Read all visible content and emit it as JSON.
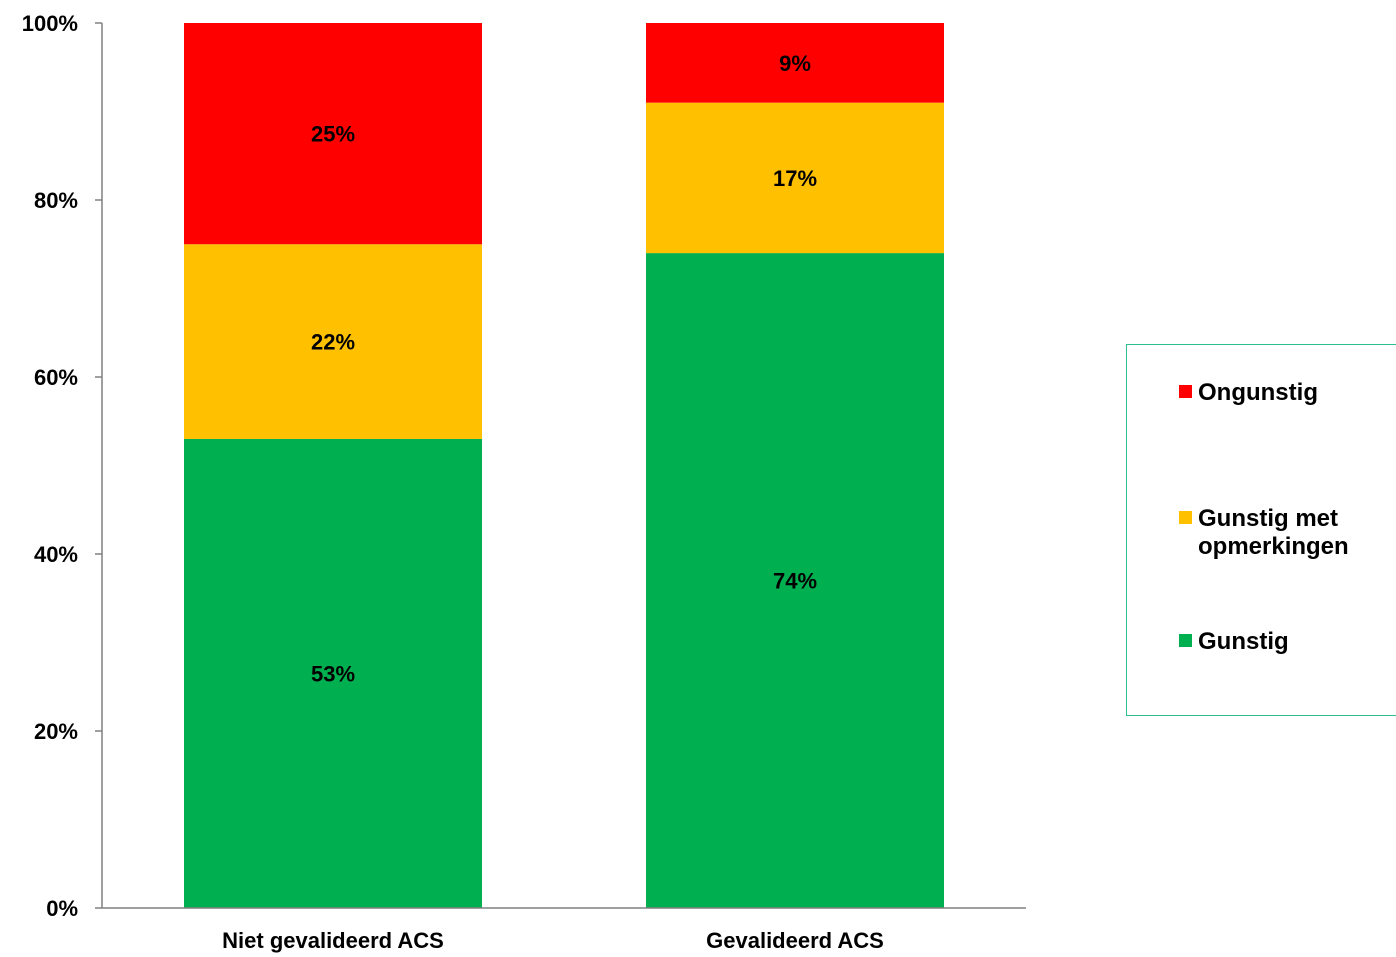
{
  "chart_data": {
    "type": "bar",
    "stacked": true,
    "categories": [
      "Niet gevalideerd ACS",
      "Gevalideerd ACS"
    ],
    "series": [
      {
        "name": "Gunstig",
        "values": [
          53,
          74
        ],
        "color": "#00b050"
      },
      {
        "name": "Gunstig met opmerkingen",
        "values": [
          22,
          17
        ],
        "color": "#ffc000"
      },
      {
        "name": "Ongunstig",
        "values": [
          25,
          9
        ],
        "color": "#ff0000"
      }
    ],
    "data_labels": [
      [
        "53%",
        "74%"
      ],
      [
        "22%",
        "17%"
      ],
      [
        "25%",
        "9%"
      ]
    ],
    "ylim": [
      0,
      100
    ],
    "yticks": [
      "0%",
      "20%",
      "40%",
      "60%",
      "80%",
      "100%"
    ],
    "ytick_values": [
      0,
      20,
      40,
      60,
      80,
      100
    ],
    "grid": false,
    "legend_position": "right"
  },
  "legend": {
    "items": [
      {
        "label": "Ongunstig",
        "color": "#ff0000"
      },
      {
        "label": "Gunstig met opmerkingen",
        "color": "#ffc000"
      },
      {
        "label": "Gunstig",
        "color": "#00b050"
      }
    ],
    "border_color": "#2fbf8f"
  }
}
